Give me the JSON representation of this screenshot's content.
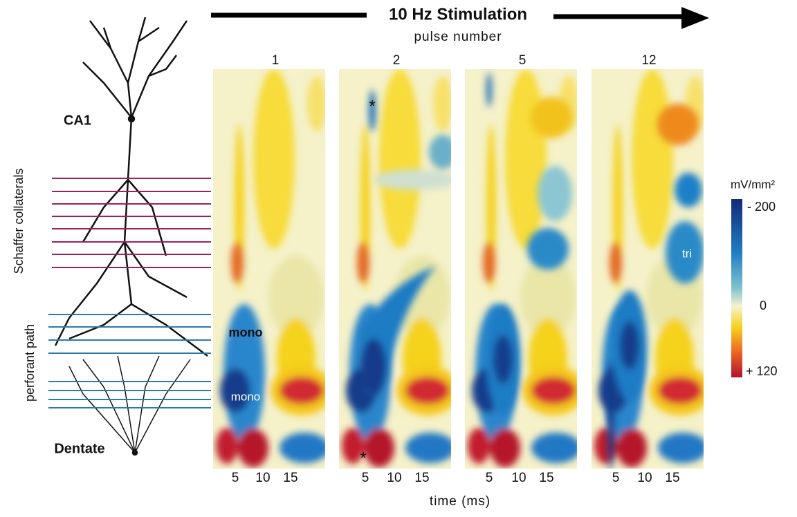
{
  "header": {
    "title": "10 Hz Stimulation",
    "subtitle": "pulse number"
  },
  "panels": [
    "1",
    "2",
    "5",
    "12"
  ],
  "x_ticks": [
    "5",
    "10",
    "15"
  ],
  "x_label": "time (ms)",
  "regions": {
    "top": "CA1",
    "upper_inputs": "Schaffer collaterals",
    "lower_inputs": "perforant path",
    "bottom": "Dentate"
  },
  "annotations": {
    "mono_upper": "mono",
    "mono_lower": "mono",
    "tri": "tri",
    "star": "*"
  },
  "colorbar": {
    "unit": "mV/mm²",
    "labels": [
      "- 200",
      "0",
      "+ 120"
    ]
  }
}
